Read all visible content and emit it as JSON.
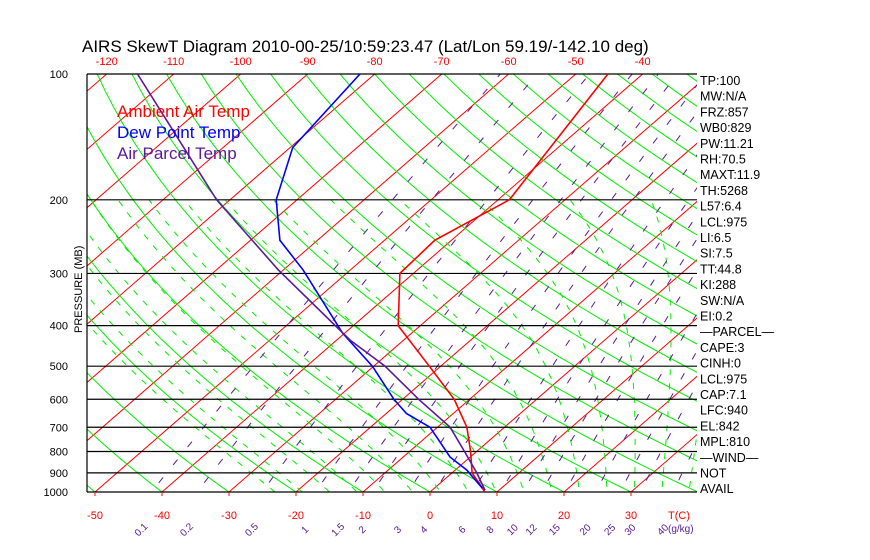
{
  "chart_data": {
    "type": "line",
    "subtype": "skew-t log-p diagram",
    "title": "AIRS SkewT Diagram 2010-00-25/10:59:23.47 (Lat/Lon 59.19/-142.10 deg)",
    "ylabel": "PRESSURE (MB)",
    "xlabel": "T(C)",
    "mixing_ratio_unit_label": "(g/kg)",
    "ylim": [
      1000,
      100
    ],
    "pressure_ticks": [
      100,
      200,
      300,
      400,
      500,
      600,
      700,
      800,
      900,
      1000
    ],
    "top_temp_ticks": [
      -120,
      -110,
      -100,
      -90,
      -80,
      -70,
      -60,
      -50,
      -40
    ],
    "bottom_temp_ticks": [
      -50,
      -40,
      -30,
      -20,
      -10,
      0,
      10,
      20,
      30
    ],
    "mixing_ratio_ticks": [
      "0.1",
      "0.2",
      "0.5",
      "1",
      "1.5",
      "2",
      "3",
      "4",
      "6",
      "8",
      "10",
      "12",
      "15",
      "20",
      "25",
      "30",
      "40"
    ],
    "legend": [
      {
        "label": "Ambient Air Temp",
        "color": "#ff0000"
      },
      {
        "label": "Dew Point Temp",
        "color": "#0000ff"
      },
      {
        "label": "Air Parcel Temp",
        "color": "#5a1a9a"
      }
    ],
    "legend_placement": "top-left",
    "series": [
      {
        "name": "Ambient Air Temp",
        "color": "#ff0000",
        "points": [
          [
            1000,
            8.2
          ],
          [
            900,
            3.0
          ],
          [
            800,
            -0.9
          ],
          [
            700,
            -5.6
          ],
          [
            600,
            -12.3
          ],
          [
            500,
            -21.7
          ],
          [
            400,
            -33.3
          ],
          [
            300,
            -42.0
          ],
          [
            250,
            -42.5
          ],
          [
            200,
            -38.3
          ],
          [
            100,
            -45.2
          ]
        ]
      },
      {
        "name": "Dew Point Temp",
        "color": "#0000ff",
        "points": [
          [
            980,
            7.2
          ],
          [
            886,
            1.7
          ],
          [
            825,
            -3.0
          ],
          [
            700,
            -11.1
          ],
          [
            649,
            -17.0
          ],
          [
            600,
            -21.3
          ],
          [
            500,
            -30.2
          ],
          [
            417,
            -40.3
          ],
          [
            294,
            -57.1
          ],
          [
            250,
            -65.6
          ],
          [
            200,
            -73.1
          ],
          [
            150,
            -79.6
          ],
          [
            100,
            -82.2
          ]
        ]
      },
      {
        "name": "Air Parcel Temp",
        "color": "#5a1a9a",
        "points": [
          [
            990,
            7.9
          ],
          [
            900,
            3.7
          ],
          [
            800,
            -1.8
          ],
          [
            700,
            -8.1
          ],
          [
            600,
            -17.6
          ],
          [
            500,
            -28.3
          ],
          [
            433,
            -38.0
          ],
          [
            294,
            -60.8
          ],
          [
            200,
            -82.0
          ],
          [
            100,
            -115.4
          ]
        ]
      }
    ],
    "grid": {
      "isotherms": true,
      "dry_adiabats": true,
      "moist_adiabats": true,
      "mixing_ratio_lines": true,
      "isobars": true
    },
    "colors": {
      "isotherm": "#ff0000",
      "dry_adiabat": "#00ee00",
      "moist_adiabat": "#00ee00",
      "mixing_ratio": "#5a1a9a",
      "isobar": "#000000"
    }
  },
  "stats": [
    "TP:100",
    "MW:N/A",
    "FRZ:857",
    "WB0:829",
    "PW:11.21",
    "RH:70.5",
    "MAXT:11.9",
    "TH:5268",
    "L57:6.4",
    "LCL:975",
    "LI:6.5",
    "SI:7.5",
    "TT:44.8",
    "KI:288",
    "SW:N/A",
    "EI:0.2",
    "—PARCEL—",
    "CAPE:3",
    "CINH:0",
    "LCL:975",
    "CAP:7.1",
    "LFC:940",
    "EL:842",
    "MPL:810",
    "—WIND—",
    "NOT",
    "AVAIL"
  ]
}
